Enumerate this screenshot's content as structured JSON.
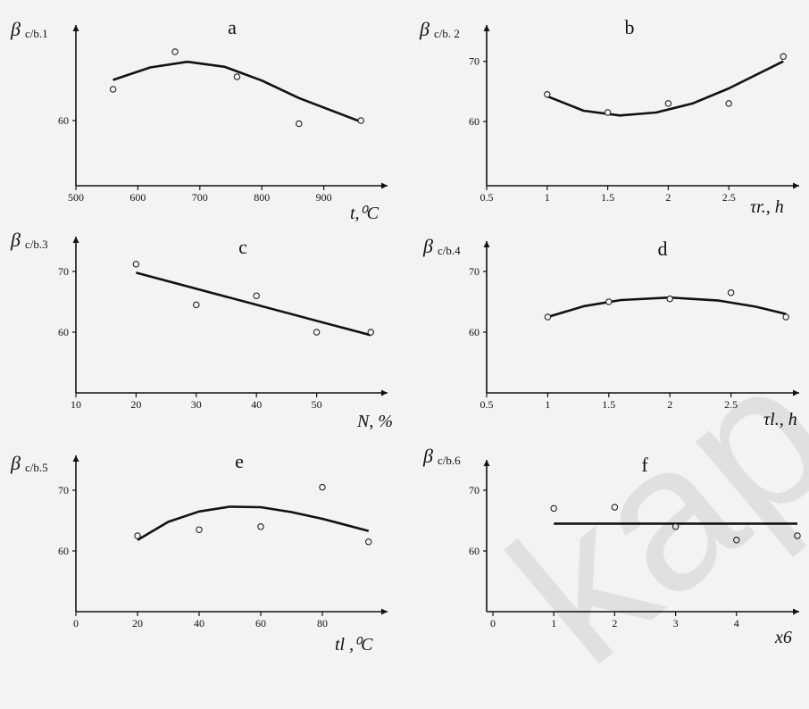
{
  "chart_data": [
    {
      "id": "a",
      "type": "scatter",
      "panel_label": "a",
      "ylabel_main": "β",
      "ylabel_sub": "c/b.1",
      "xlabel": "t,⁰C",
      "xlim": [
        500,
        1000
      ],
      "ylim": [
        50,
        75
      ],
      "xticks": [
        500,
        600,
        700,
        800,
        900
      ],
      "yticks": [
        60
      ],
      "points": [
        [
          560,
          65
        ],
        [
          660,
          71
        ],
        [
          760,
          67
        ],
        [
          860,
          59.5
        ],
        [
          960,
          60
        ]
      ],
      "fit": [
        [
          560,
          66.5
        ],
        [
          620,
          68.5
        ],
        [
          680,
          69.4
        ],
        [
          740,
          68.6
        ],
        [
          800,
          66.4
        ],
        [
          860,
          63.6
        ],
        [
          960,
          59.8
        ]
      ]
    },
    {
      "id": "b",
      "type": "scatter",
      "panel_label": "b",
      "ylabel_main": "β",
      "ylabel_sub": "c/b. 2",
      "xlabel": "τr., h",
      "xlim": [
        0.5,
        3.0
      ],
      "ylim": [
        52,
        75
      ],
      "xticks": [
        "0.5",
        "1",
        "1.5",
        "2",
        "2.5"
      ],
      "xtick_values": [
        0.5,
        1,
        1.5,
        2,
        2.5
      ],
      "yticks": [
        60,
        70
      ],
      "points": [
        [
          1,
          64.5
        ],
        [
          1.5,
          61.5
        ],
        [
          2,
          63
        ],
        [
          2.5,
          63
        ],
        [
          2.95,
          70.8
        ]
      ],
      "fit": [
        [
          1,
          64.2
        ],
        [
          1.3,
          61.8
        ],
        [
          1.6,
          61
        ],
        [
          1.9,
          61.5
        ],
        [
          2.2,
          63
        ],
        [
          2.5,
          65.5
        ],
        [
          2.95,
          70
        ]
      ]
    },
    {
      "id": "c",
      "type": "scatter",
      "panel_label": "c",
      "ylabel_main": "β",
      "ylabel_sub": "c/b.3",
      "xlabel": "N, %",
      "xlim": [
        10,
        60
      ],
      "ylim": [
        50,
        75
      ],
      "xticks": [
        10,
        20,
        30,
        40,
        50
      ],
      "yticks": [
        60,
        70
      ],
      "points": [
        [
          20,
          71.2
        ],
        [
          30,
          64.5
        ],
        [
          40,
          66
        ],
        [
          50,
          60
        ],
        [
          59,
          60
        ]
      ],
      "fit": [
        [
          20,
          69.8
        ],
        [
          59,
          59.5
        ]
      ]
    },
    {
      "id": "d",
      "type": "scatter",
      "panel_label": "d",
      "ylabel_main": "β",
      "ylabel_sub": "c/b.4",
      "xlabel": "τl., h",
      "xlim": [
        0.5,
        3.0
      ],
      "ylim": [
        50,
        75
      ],
      "xticks": [
        "0.5",
        "1",
        "1.5",
        "2",
        "2.5"
      ],
      "xtick_values": [
        0.5,
        1,
        1.5,
        2,
        2.5
      ],
      "yticks": [
        60,
        70
      ],
      "points": [
        [
          1,
          62.5
        ],
        [
          1.5,
          65
        ],
        [
          2,
          65.5
        ],
        [
          2.5,
          66.5
        ],
        [
          2.95,
          62.5
        ]
      ],
      "fit": [
        [
          1,
          62.5
        ],
        [
          1.3,
          64.3
        ],
        [
          1.6,
          65.3
        ],
        [
          2,
          65.7
        ],
        [
          2.4,
          65.2
        ],
        [
          2.7,
          64.2
        ],
        [
          2.95,
          63
        ]
      ]
    },
    {
      "id": "e",
      "type": "scatter",
      "panel_label": "e",
      "ylabel_main": "β",
      "ylabel_sub": "c/b.5",
      "xlabel": "tl ,⁰C",
      "xlim": [
        0,
        100
      ],
      "ylim": [
        50,
        75
      ],
      "xticks": [
        0,
        20,
        40,
        60,
        80
      ],
      "yticks": [
        60,
        70
      ],
      "points": [
        [
          20,
          62.5
        ],
        [
          40,
          63.5
        ],
        [
          60,
          64
        ],
        [
          80,
          70.5
        ],
        [
          95,
          61.5
        ]
      ],
      "fit": [
        [
          20,
          61.8
        ],
        [
          30,
          64.8
        ],
        [
          40,
          66.5
        ],
        [
          50,
          67.3
        ],
        [
          60,
          67.2
        ],
        [
          70,
          66.4
        ],
        [
          80,
          65.3
        ],
        [
          95,
          63.3
        ]
      ]
    },
    {
      "id": "f",
      "type": "scatter",
      "panel_label": "f",
      "ylabel_main": "β",
      "ylabel_sub": "c/b.6",
      "xlabel": "x6",
      "xlim": [
        0,
        5
      ],
      "ylim": [
        50,
        75
      ],
      "xticks": [
        0,
        1,
        2,
        3,
        4
      ],
      "yticks": [
        60,
        70
      ],
      "points": [
        [
          1,
          67
        ],
        [
          2,
          67.2
        ],
        [
          3,
          64
        ],
        [
          4,
          61.8
        ],
        [
          5,
          62.5
        ]
      ],
      "fit": [
        [
          1,
          64.5
        ],
        [
          5,
          64.5
        ]
      ]
    }
  ]
}
